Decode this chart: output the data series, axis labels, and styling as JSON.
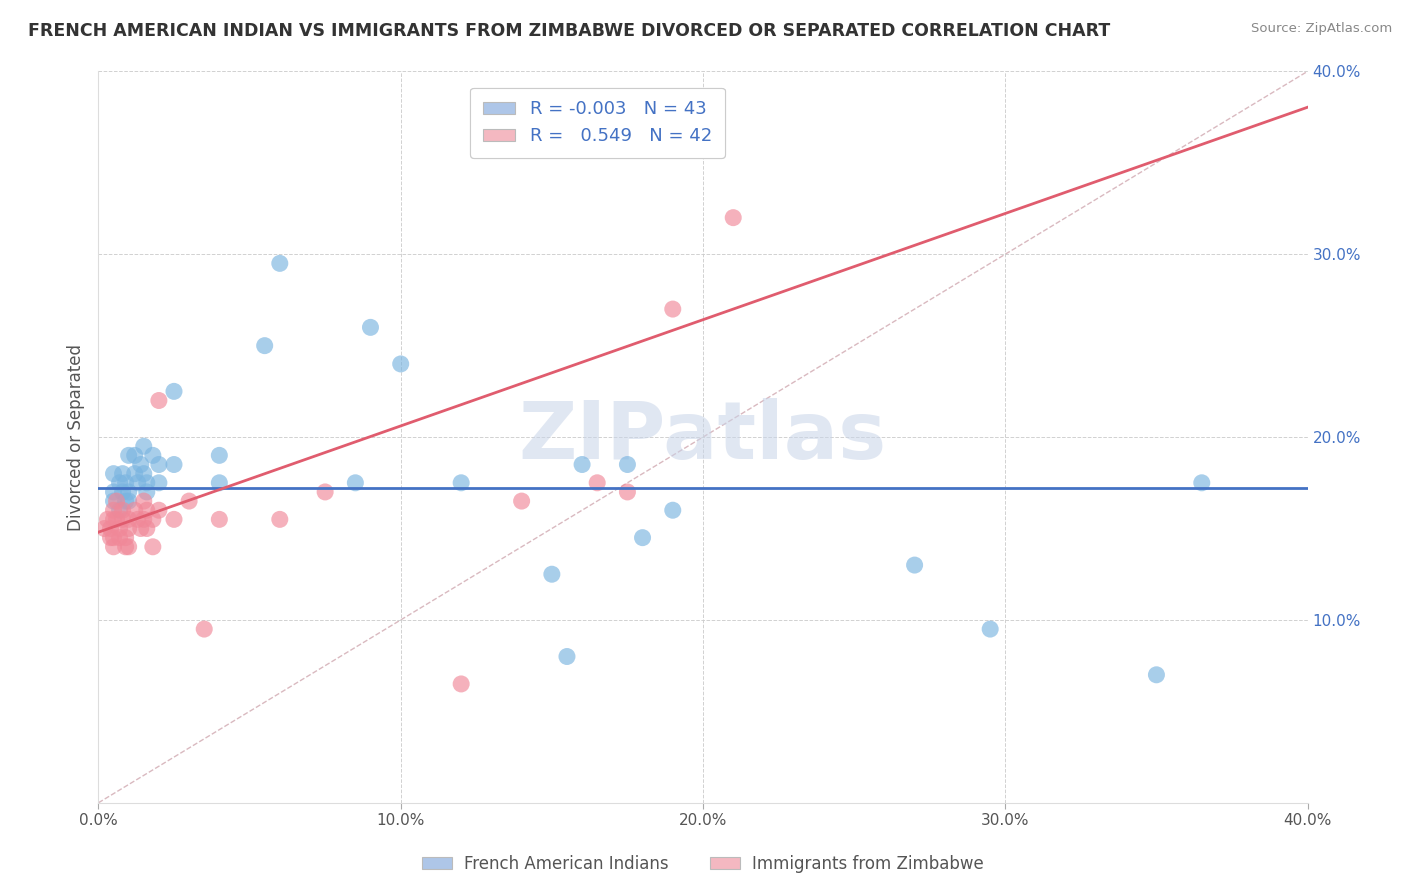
{
  "title": "FRENCH AMERICAN INDIAN VS IMMIGRANTS FROM ZIMBABWE DIVORCED OR SEPARATED CORRELATION CHART",
  "source": "Source: ZipAtlas.com",
  "ylabel": "Divorced or Separated",
  "xlim": [
    0.0,
    0.4
  ],
  "ylim": [
    0.0,
    0.4
  ],
  "legend_entries": [
    {
      "color": "#aec6e8",
      "R": "-0.003",
      "N": "43",
      "label": "French American Indians"
    },
    {
      "color": "#f4b8c1",
      "R": "  0.549",
      "N": "42",
      "label": "Immigrants from Zimbabwe"
    }
  ],
  "blue_scatter": [
    [
      0.005,
      0.165
    ],
    [
      0.005,
      0.17
    ],
    [
      0.005,
      0.18
    ],
    [
      0.007,
      0.175
    ],
    [
      0.007,
      0.16
    ],
    [
      0.008,
      0.17
    ],
    [
      0.008,
      0.18
    ],
    [
      0.009,
      0.165
    ],
    [
      0.009,
      0.175
    ],
    [
      0.01,
      0.19
    ],
    [
      0.01,
      0.17
    ],
    [
      0.01,
      0.165
    ],
    [
      0.012,
      0.19
    ],
    [
      0.012,
      0.18
    ],
    [
      0.013,
      0.175
    ],
    [
      0.014,
      0.185
    ],
    [
      0.015,
      0.195
    ],
    [
      0.015,
      0.18
    ],
    [
      0.016,
      0.17
    ],
    [
      0.016,
      0.175
    ],
    [
      0.018,
      0.19
    ],
    [
      0.02,
      0.185
    ],
    [
      0.02,
      0.175
    ],
    [
      0.025,
      0.185
    ],
    [
      0.025,
      0.225
    ],
    [
      0.04,
      0.175
    ],
    [
      0.04,
      0.19
    ],
    [
      0.055,
      0.25
    ],
    [
      0.06,
      0.295
    ],
    [
      0.085,
      0.175
    ],
    [
      0.09,
      0.26
    ],
    [
      0.1,
      0.24
    ],
    [
      0.12,
      0.175
    ],
    [
      0.15,
      0.125
    ],
    [
      0.155,
      0.08
    ],
    [
      0.16,
      0.185
    ],
    [
      0.175,
      0.185
    ],
    [
      0.18,
      0.145
    ],
    [
      0.19,
      0.16
    ],
    [
      0.27,
      0.13
    ],
    [
      0.295,
      0.095
    ],
    [
      0.35,
      0.07
    ],
    [
      0.365,
      0.175
    ]
  ],
  "pink_scatter": [
    [
      0.002,
      0.15
    ],
    [
      0.003,
      0.155
    ],
    [
      0.004,
      0.145
    ],
    [
      0.004,
      0.15
    ],
    [
      0.005,
      0.16
    ],
    [
      0.005,
      0.155
    ],
    [
      0.005,
      0.145
    ],
    [
      0.005,
      0.14
    ],
    [
      0.006,
      0.165
    ],
    [
      0.006,
      0.155
    ],
    [
      0.007,
      0.15
    ],
    [
      0.007,
      0.145
    ],
    [
      0.008,
      0.16
    ],
    [
      0.008,
      0.155
    ],
    [
      0.009,
      0.14
    ],
    [
      0.009,
      0.145
    ],
    [
      0.01,
      0.155
    ],
    [
      0.01,
      0.15
    ],
    [
      0.01,
      0.14
    ],
    [
      0.012,
      0.16
    ],
    [
      0.013,
      0.155
    ],
    [
      0.014,
      0.15
    ],
    [
      0.015,
      0.165
    ],
    [
      0.015,
      0.155
    ],
    [
      0.016,
      0.16
    ],
    [
      0.016,
      0.15
    ],
    [
      0.018,
      0.155
    ],
    [
      0.018,
      0.14
    ],
    [
      0.02,
      0.16
    ],
    [
      0.02,
      0.22
    ],
    [
      0.025,
      0.155
    ],
    [
      0.03,
      0.165
    ],
    [
      0.035,
      0.095
    ],
    [
      0.04,
      0.155
    ],
    [
      0.06,
      0.155
    ],
    [
      0.075,
      0.17
    ],
    [
      0.12,
      0.065
    ],
    [
      0.14,
      0.165
    ],
    [
      0.165,
      0.175
    ],
    [
      0.175,
      0.17
    ],
    [
      0.19,
      0.27
    ],
    [
      0.21,
      0.32
    ]
  ],
  "blue_line_y_const": 0.172,
  "blue_line_color": "#4472c4",
  "pink_line_x0": 0.0,
  "pink_line_y0": 0.148,
  "pink_line_x1": 0.21,
  "pink_line_y1": 0.27,
  "pink_line_color": "#e05c6e",
  "diagonal_color": "#cccccc",
  "title_color": "#333333",
  "source_color": "#888888",
  "scatter_blue": "#7ab4e0",
  "scatter_pink": "#f08898",
  "watermark_color": "#c8d4e8",
  "grid_color": "#cccccc"
}
